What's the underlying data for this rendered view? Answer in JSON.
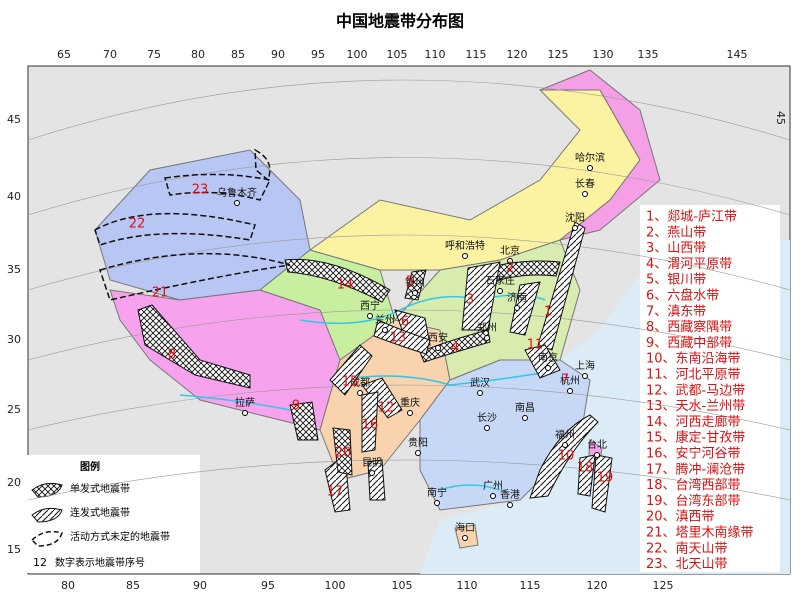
{
  "title": "中国地震带分布图",
  "graticule": {
    "top": [
      "65",
      "70",
      "75",
      "80",
      "85",
      "90",
      "95",
      "100",
      "105",
      "110",
      "115",
      "120",
      "125",
      "130",
      "135",
      "145"
    ],
    "bottom": [
      "80",
      "85",
      "90",
      "95",
      "100",
      "105",
      "110",
      "115",
      "120",
      "125"
    ],
    "left": [
      "45",
      "40",
      "35",
      "30",
      "25",
      "20",
      "15"
    ],
    "right": [
      "45"
    ]
  },
  "cities": [
    "哈尔滨",
    "长春",
    "沈阳",
    "呼和浩特",
    "北京",
    "石家庄",
    "济南",
    "银川",
    "西宁",
    "兰州",
    "西安",
    "郑州",
    "南京",
    "上海",
    "杭州",
    "武汉",
    "成都",
    "重庆",
    "长沙",
    "南昌",
    "福州",
    "台北",
    "贵阳",
    "昆明",
    "南宁",
    "广州",
    "香港",
    "海口",
    "拉萨",
    "乌鲁木齐"
  ],
  "belt_numbers": [
    "1",
    "2",
    "3",
    "4",
    "5",
    "6",
    "7",
    "8",
    "9",
    "10",
    "11",
    "12",
    "13",
    "14",
    "15",
    "16",
    "17",
    "18",
    "19",
    "20",
    "21",
    "22",
    "23"
  ],
  "belt_list": [
    "1、郯城-庐江带",
    "2、燕山带",
    "3、山西带",
    "4、渭河平原带",
    "5、银川带",
    "6、六盘水带",
    "7、滇东带",
    "8、西藏察隅带",
    "9、西藏中部带",
    "10、东南沿海带",
    "11、河北平原带",
    "12、武都-马边带",
    "13、天水-兰州带",
    "14、河西走廊带",
    "15、康定-甘孜带",
    "16、安宁河谷带",
    "17、腾冲-澜沧带",
    "18、台湾西部带",
    "19、台湾东部带",
    "20、滇西带",
    "21、塔里木南缘带",
    "22、南天山带",
    "23、北天山带"
  ],
  "legend": {
    "title": "图例",
    "items": [
      "单发式地震带",
      "连发式地震带",
      "活动方式未定的地震带"
    ],
    "number_sample": "12",
    "number_note": "数字表示地震带序号"
  }
}
